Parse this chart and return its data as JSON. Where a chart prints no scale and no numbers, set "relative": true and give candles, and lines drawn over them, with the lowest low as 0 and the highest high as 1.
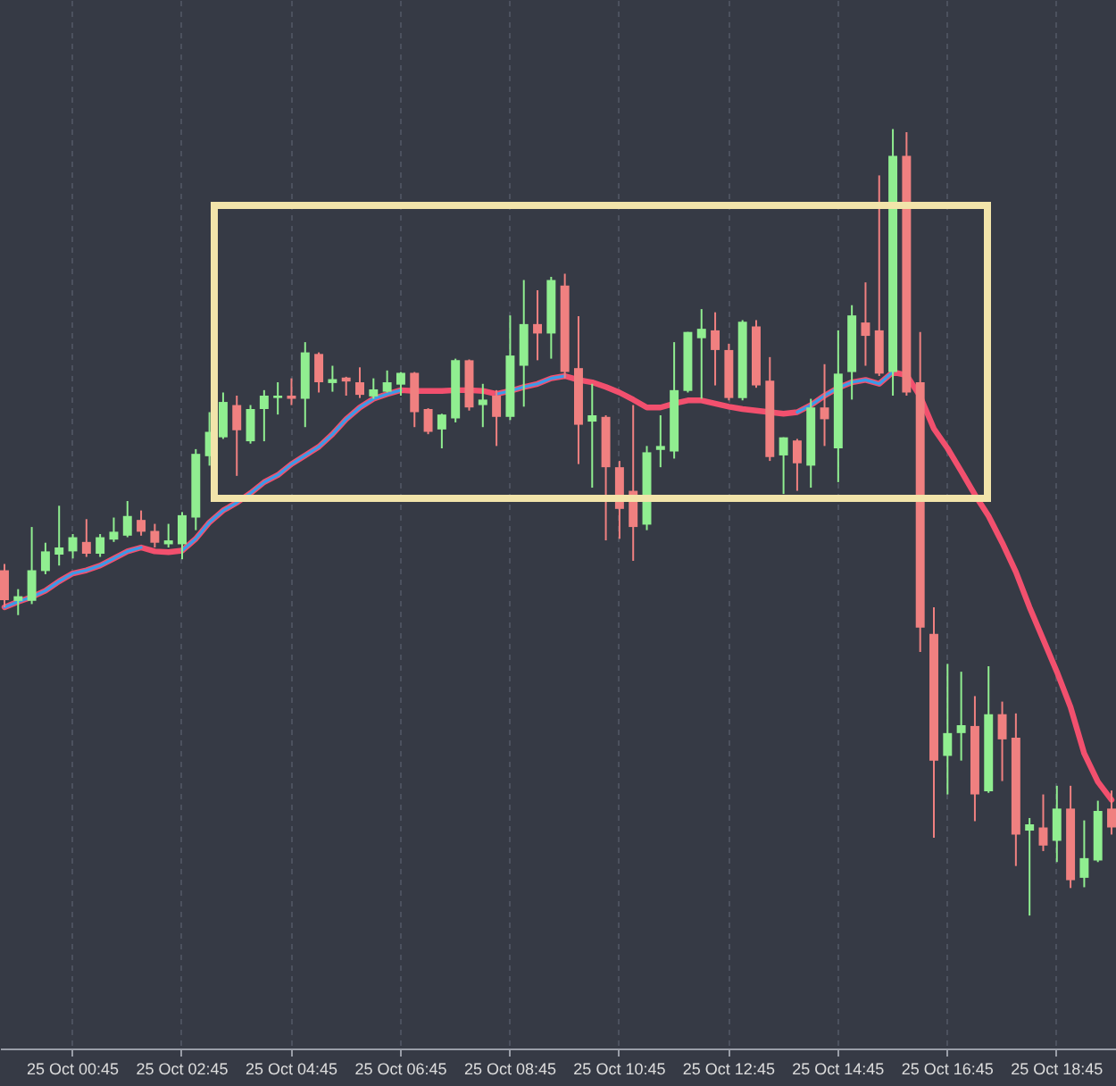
{
  "chart_data": {
    "type": "candlestick",
    "relative": true,
    "grid": "x",
    "categories": [
      null,
      null,
      null,
      null,
      null,
      "25 Oct 00:45",
      null,
      null,
      null,
      null,
      null,
      null,
      null,
      "25 Oct 02:45",
      null,
      null,
      null,
      null,
      null,
      null,
      null,
      "25 Oct 04:45",
      null,
      null,
      null,
      null,
      null,
      null,
      null,
      "25 Oct 06:45",
      null,
      null,
      null,
      null,
      null,
      null,
      null,
      "25 Oct 08:45",
      null,
      null,
      null,
      null,
      null,
      null,
      null,
      "25 Oct 10:45",
      null,
      null,
      null,
      null,
      null,
      null,
      null,
      "25 Oct 12:45",
      null,
      null,
      null,
      null,
      null,
      null,
      null,
      "25 Oct 14:45",
      null,
      null,
      null,
      null,
      null,
      null,
      null,
      "25 Oct 16:45",
      null,
      null,
      null,
      null,
      null,
      null,
      null,
      "25 Oct 18:45",
      null,
      null,
      null,
      null
    ],
    "ohlc": [
      [
        0.439,
        0.447,
        0.392,
        0.401
      ],
      [
        0.4,
        0.415,
        0.382,
        0.406
      ],
      [
        0.4,
        0.494,
        0.396,
        0.439
      ],
      [
        0.438,
        0.474,
        0.434,
        0.463
      ],
      [
        0.459,
        0.521,
        0.445,
        0.468
      ],
      [
        0.463,
        0.485,
        0.454,
        0.481
      ],
      [
        0.475,
        0.504,
        0.456,
        0.46
      ],
      [
        0.46,
        0.485,
        0.456,
        0.481
      ],
      [
        0.478,
        0.506,
        0.475,
        0.488
      ],
      [
        0.483,
        0.527,
        0.481,
        0.508
      ],
      [
        0.503,
        0.515,
        0.483,
        0.488
      ],
      [
        0.489,
        0.498,
        0.468,
        0.474
      ],
      [
        0.472,
        0.498,
        0.468,
        0.477
      ],
      [
        0.472,
        0.513,
        0.453,
        0.509
      ],
      [
        0.506,
        0.593,
        0.49,
        0.587
      ],
      [
        0.584,
        0.64,
        0.572,
        0.615
      ],
      [
        0.608,
        0.665,
        0.606,
        0.653
      ],
      [
        0.649,
        0.661,
        0.559,
        0.617
      ],
      [
        0.603,
        0.649,
        0.6,
        0.644
      ],
      [
        0.644,
        0.668,
        0.603,
        0.661
      ],
      [
        0.658,
        0.678,
        0.637,
        0.661
      ],
      [
        0.661,
        0.683,
        0.649,
        0.657
      ],
      [
        0.657,
        0.729,
        0.621,
        0.716
      ],
      [
        0.714,
        0.716,
        0.665,
        0.678
      ],
      [
        0.677,
        0.699,
        0.666,
        0.682
      ],
      [
        0.684,
        0.685,
        0.661,
        0.679
      ],
      [
        0.678,
        0.697,
        0.658,
        0.662
      ],
      [
        0.66,
        0.683,
        0.657,
        0.669
      ],
      [
        0.666,
        0.693,
        0.665,
        0.678
      ],
      [
        0.675,
        0.691,
        0.661,
        0.69
      ],
      [
        0.69,
        0.691,
        0.621,
        0.64
      ],
      [
        0.644,
        0.645,
        0.612,
        0.615
      ],
      [
        0.618,
        0.638,
        0.594,
        0.637
      ],
      [
        0.632,
        0.708,
        0.627,
        0.706
      ],
      [
        0.706,
        0.707,
        0.642,
        0.646
      ],
      [
        0.649,
        0.676,
        0.621,
        0.656
      ],
      [
        0.661,
        0.668,
        0.597,
        0.634
      ],
      [
        0.634,
        0.763,
        0.63,
        0.712
      ],
      [
        0.699,
        0.808,
        0.647,
        0.752
      ],
      [
        0.752,
        0.795,
        0.706,
        0.74
      ],
      [
        0.74,
        0.812,
        0.708,
        0.808
      ],
      [
        0.801,
        0.816,
        0.683,
        0.691
      ],
      [
        0.696,
        0.762,
        0.574,
        0.624
      ],
      [
        0.628,
        0.676,
        0.544,
        0.636
      ],
      [
        0.634,
        0.636,
        0.477,
        0.57
      ],
      [
        0.57,
        0.578,
        0.479,
        0.517
      ],
      [
        0.54,
        0.649,
        0.451,
        0.494
      ],
      [
        0.497,
        0.597,
        0.49,
        0.589
      ],
      [
        0.592,
        0.636,
        0.57,
        0.597
      ],
      [
        0.59,
        0.729,
        0.581,
        0.668
      ],
      [
        0.667,
        0.742,
        0.665,
        0.742
      ],
      [
        0.734,
        0.771,
        0.657,
        0.746
      ],
      [
        0.744,
        0.767,
        0.674,
        0.719
      ],
      [
        0.719,
        0.727,
        0.655,
        0.658
      ],
      [
        0.658,
        0.757,
        0.655,
        0.755
      ],
      [
        0.749,
        0.757,
        0.671,
        0.674
      ],
      [
        0.68,
        0.71,
        0.578,
        0.583
      ],
      [
        0.585,
        0.608,
        0.536,
        0.608
      ],
      [
        0.604,
        0.606,
        0.54,
        0.575
      ],
      [
        0.572,
        0.657,
        0.544,
        0.646
      ],
      [
        0.646,
        0.701,
        0.597,
        0.631
      ],
      [
        0.594,
        0.744,
        0.551,
        0.689
      ],
      [
        0.691,
        0.776,
        0.656,
        0.763
      ],
      [
        0.754,
        0.805,
        0.699,
        0.737
      ],
      [
        0.744,
        0.941,
        0.686,
        0.689
      ],
      [
        0.691,
        1,
        0.661,
        0.966
      ],
      [
        0.966,
        0.996,
        0.661,
        0.665
      ],
      [
        0.678,
        0.742,
        0.335,
        0.366
      ],
      [
        0.358,
        0.392,
        0.099,
        0.197
      ],
      [
        0.203,
        0.32,
        0.154,
        0.232
      ],
      [
        0.232,
        0.31,
        0.197,
        0.242
      ],
      [
        0.241,
        0.279,
        0.12,
        0.154
      ],
      [
        0.158,
        0.317,
        0.156,
        0.256
      ],
      [
        0.256,
        0.272,
        0.171,
        0.224
      ],
      [
        0.226,
        0.257,
        0.063,
        0.103
      ],
      [
        0.108,
        0.124,
        0,
        0.116
      ],
      [
        0.112,
        0.154,
        0.082,
        0.089
      ],
      [
        0.095,
        0.165,
        0.068,
        0.136
      ],
      [
        0.136,
        0.165,
        0.035,
        0.045
      ],
      [
        0.048,
        0.121,
        0.036,
        0.073
      ],
      [
        0.07,
        0.146,
        0.068,
        0.133
      ],
      [
        0.136,
        0.159,
        0.103,
        0.112
      ]
    ],
    "colors": [
      "#f08080",
      "#90ee90",
      "#90ee90",
      "#90ee90",
      "#90ee90",
      "#90ee90",
      "#f08080",
      "#90ee90",
      "#90ee90",
      "#90ee90",
      "#f08080",
      "#f08080",
      "#90ee90",
      "#90ee90",
      "#90ee90",
      "#90ee90",
      "#90ee90",
      "#f08080",
      "#90ee90",
      "#90ee90",
      "#90ee90",
      "#f08080",
      "#90ee90",
      "#f08080",
      "#90ee90",
      "#f08080",
      "#f08080",
      "#90ee90",
      "#90ee90",
      "#90ee90",
      "#f08080",
      "#f08080",
      "#90ee90",
      "#90ee90",
      "#f08080",
      "#90ee90",
      "#f08080",
      "#90ee90",
      "#90ee90",
      "#f08080",
      "#90ee90",
      "#f08080",
      "#f08080",
      "#90ee90",
      "#f08080",
      "#f08080",
      "#f08080",
      "#90ee90",
      "#90ee90",
      "#90ee90",
      "#90ee90",
      "#90ee90",
      "#f08080",
      "#f08080",
      "#90ee90",
      "#f08080",
      "#f08080",
      "#90ee90",
      "#f08080",
      "#90ee90",
      "#f08080",
      "#90ee90",
      "#90ee90",
      "#f08080",
      "#f08080",
      "#90ee90",
      "#f08080",
      "#f08080",
      "#f08080",
      "#90ee90",
      "#90ee90",
      "#f08080",
      "#90ee90",
      "#f08080",
      "#f08080",
      "#90ee90",
      "#f08080",
      "#90ee90",
      "#f08080",
      "#90ee90",
      "#90ee90",
      "#f08080"
    ],
    "series": [
      {
        "type": "line",
        "color": "#f2506e",
        "values": [
          0.392,
          0.399,
          0.405,
          0.413,
          0.425,
          0.435,
          0.439,
          0.445,
          0.454,
          0.463,
          0.468,
          0.463,
          0.462,
          0.464,
          0.479,
          0.5,
          0.515,
          0.525,
          0.537,
          0.551,
          0.56,
          0.574,
          0.585,
          0.596,
          0.612,
          0.631,
          0.646,
          0.657,
          0.663,
          0.668,
          0.667,
          0.667,
          0.667,
          0.668,
          0.668,
          0.667,
          0.663,
          0.667,
          0.672,
          0.676,
          0.683,
          0.686,
          0.681,
          0.678,
          0.672,
          0.665,
          0.656,
          0.646,
          0.646,
          0.651,
          0.655,
          0.655,
          0.651,
          0.647,
          0.644,
          0.642,
          0.64,
          0.638,
          0.64,
          0.649,
          0.661,
          0.671,
          0.678,
          0.681,
          0.676,
          0.691,
          0.687,
          0.66,
          0.619,
          0.594,
          0.565,
          0.535,
          0.508,
          0.474,
          0.437,
          0.392,
          0.351,
          0.31,
          0.265,
          0.206,
          0.17,
          0.147
        ]
      },
      {
        "type": "line",
        "color": "#3a9be8",
        "values": [
          0.392,
          0.399,
          0.405,
          0.413,
          0.425,
          0.435,
          0.439,
          0.445,
          0.454,
          0.463,
          0.468,
          null,
          null,
          0.464,
          0.479,
          0.5,
          0.515,
          0.525,
          0.537,
          0.551,
          0.56,
          0.574,
          0.585,
          0.596,
          0.612,
          0.631,
          0.646,
          0.657,
          0.663,
          0.668,
          null,
          null,
          null,
          null,
          null,
          null,
          0.663,
          0.667,
          0.672,
          0.676,
          0.683,
          0.686,
          null,
          null,
          null,
          null,
          null,
          null,
          null,
          null,
          null,
          null,
          null,
          null,
          null,
          null,
          null,
          null,
          0.64,
          0.649,
          0.661,
          0.671,
          0.678,
          0.681,
          0.676,
          0.691,
          null,
          null,
          null,
          null,
          null,
          null,
          null,
          null,
          null,
          null,
          null,
          null,
          null,
          null,
          null,
          null
        ]
      }
    ]
  }
}
